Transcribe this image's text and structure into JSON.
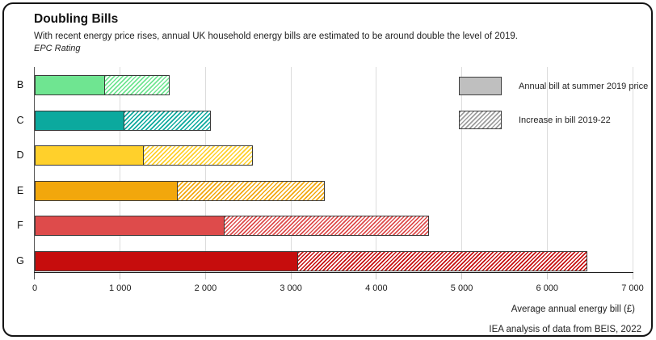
{
  "card": {
    "title": "Doubling Bills",
    "subtitle": "With recent energy price rises, annual UK household energy bills are estimated to be around double the level of 2019.",
    "axis_group_label": "EPC Rating",
    "xlabel": "Average annual energy bill (£)",
    "source": "IEA analysis of data from BEIS, 2022"
  },
  "legend": {
    "items": [
      {
        "label": "Annual bill at summer 2019 price",
        "swatch": "solid",
        "color": "#bfbfbf"
      },
      {
        "label": "Increase in bill 2019-22",
        "swatch": "hatch",
        "color": "#9c9c9c"
      }
    ]
  },
  "chart_data": {
    "type": "bar",
    "orientation": "horizontal",
    "stacked": true,
    "title": "Doubling Bills",
    "xlabel": "Average annual energy bill (£)",
    "ylabel": "EPC Rating",
    "categories": [
      "B",
      "C",
      "D",
      "E",
      "F",
      "G"
    ],
    "series": [
      {
        "name": "Annual bill at summer 2019 price",
        "style": "solid",
        "values": [
          820,
          1050,
          1280,
          1670,
          2220,
          3080
        ]
      },
      {
        "name": "Increase in bill 2019-22",
        "style": "hatch",
        "values": [
          760,
          1010,
          1270,
          1730,
          2400,
          3390
        ]
      }
    ],
    "totals": [
      1580,
      2060,
      2550,
      3400,
      4620,
      6470
    ],
    "bar_colors": [
      "#6fe591",
      "#0ca99e",
      "#ffd02b",
      "#f2a70c",
      "#de4b4b",
      "#c60d0d"
    ],
    "xlim": [
      0,
      7000
    ],
    "xticks": [
      0,
      1000,
      2000,
      3000,
      4000,
      5000,
      6000,
      7000
    ],
    "xtick_labels": [
      "0",
      "1 000",
      "2 000",
      "3 000",
      "4 000",
      "5 000",
      "6 000",
      "7 000"
    ],
    "grid": "vertical",
    "legend_position": "upper-right"
  }
}
